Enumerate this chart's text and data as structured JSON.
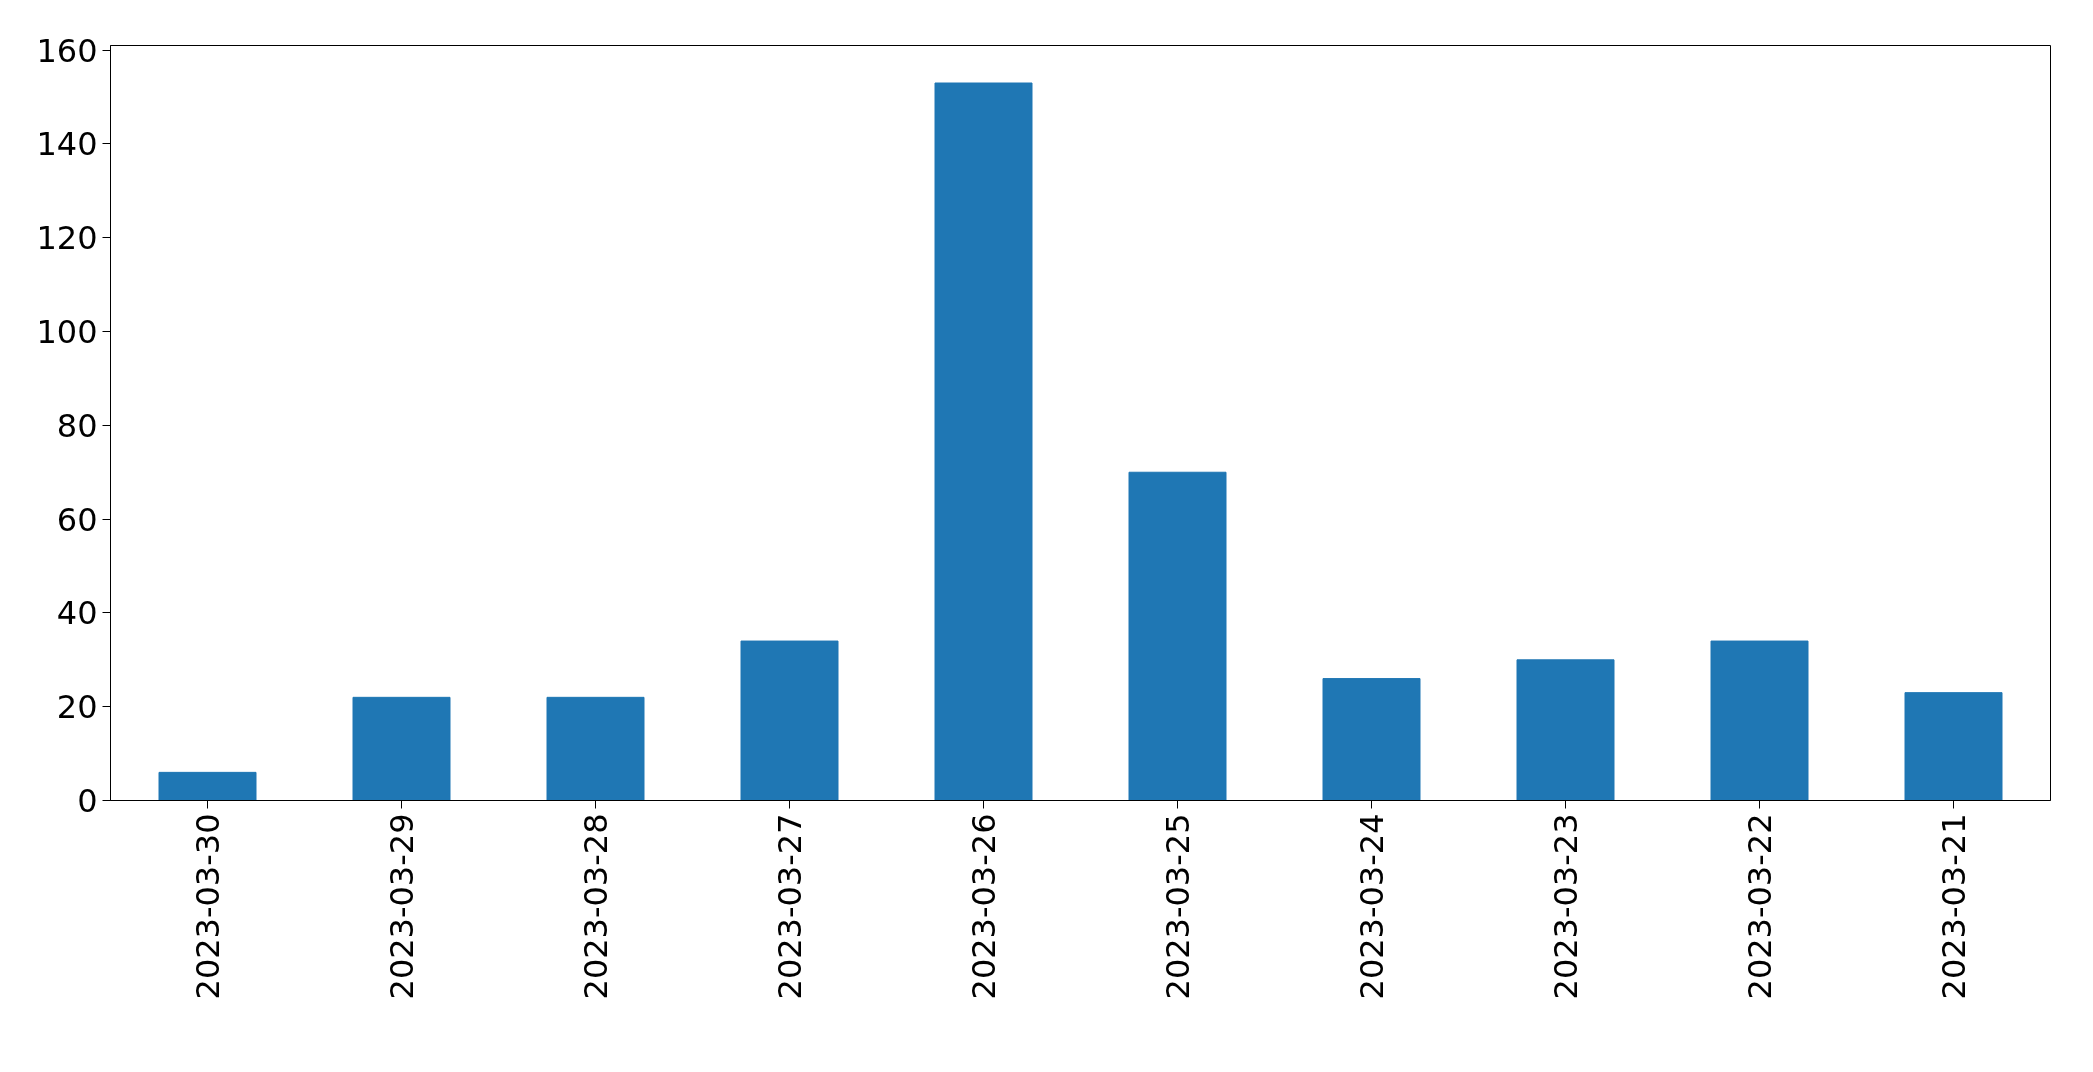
{
  "chart_data": {
    "type": "bar",
    "categories": [
      "2023-03-30",
      "2023-03-29",
      "2023-03-28",
      "2023-03-27",
      "2023-03-26",
      "2023-03-25",
      "2023-03-24",
      "2023-03-23",
      "2023-03-22",
      "2023-03-21"
    ],
    "values": [
      6,
      22,
      22,
      34,
      153,
      70,
      26,
      30,
      34,
      23
    ],
    "color": "#1f77b4",
    "ylim": [
      0,
      161
    ],
    "yticks": [
      0,
      20,
      40,
      60,
      80,
      100,
      120,
      140,
      160
    ],
    "grid": false
  }
}
